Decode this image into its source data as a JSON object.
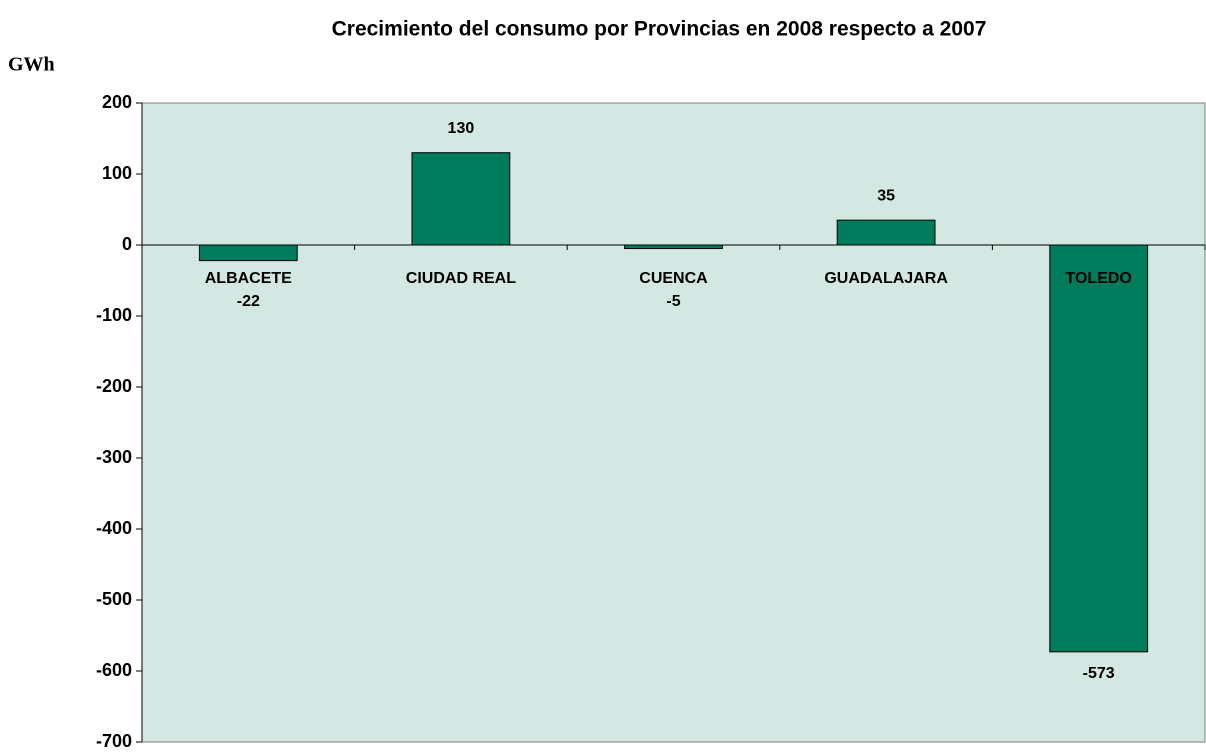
{
  "chart_data": {
    "type": "bar",
    "title": "Crecimiento del consumo por Provincias en 2008 respecto a 2007",
    "y_label": "GWh",
    "categories": [
      "ALBACETE",
      "CIUDAD REAL",
      "CUENCA",
      "GUADALAJARA",
      "TOLEDO"
    ],
    "values": [
      -22,
      130,
      -5,
      35,
      -573
    ],
    "color": "#007b5b",
    "background": "#d3e7e3",
    "ylim": [
      -700,
      200
    ],
    "yticks": [
      -700,
      -600,
      -500,
      -400,
      -300,
      -200,
      -100,
      0,
      100,
      200
    ],
    "grid": false
  }
}
